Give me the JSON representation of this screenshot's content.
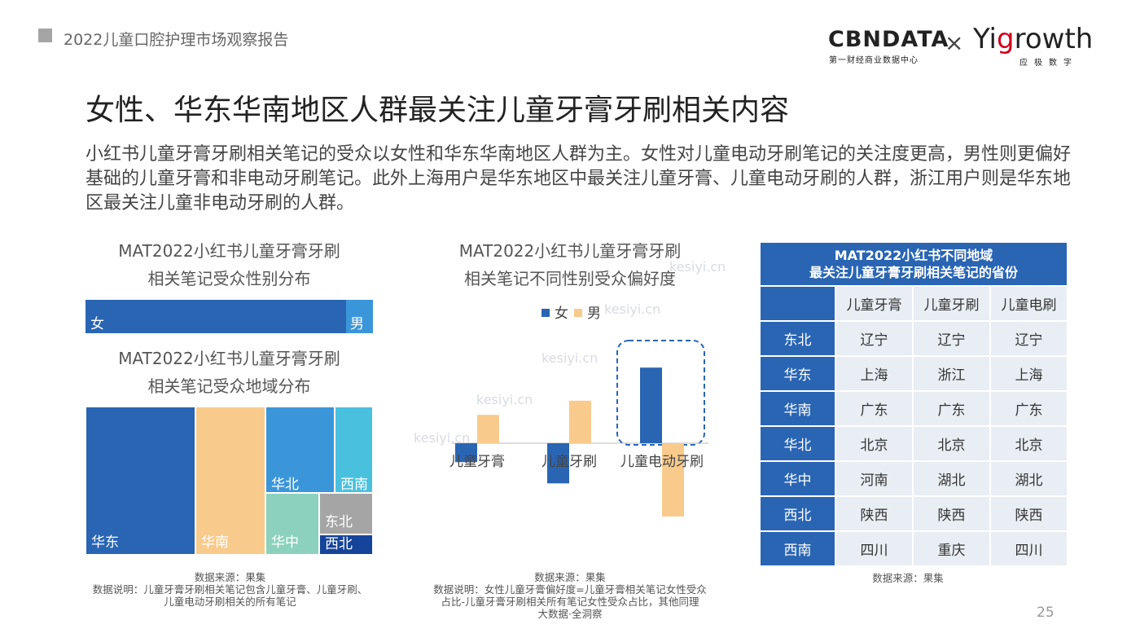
{
  "header": {
    "report_title": "2022儿童口腔护理市场观察报告",
    "logo_cbn": "CBNDATA",
    "logo_cbn_sub": "第一财经商业数据中心",
    "logo_x": "×",
    "logo_yi_a": "Yi",
    "logo_yi_g": "g",
    "logo_yi_b": "rowth",
    "logo_yi_sub": "应极数字"
  },
  "page_title": "女性、华东华南地区人群最关注儿童牙膏牙刷相关内容",
  "description": "小红书儿童牙膏牙刷相关笔记的受众以女性和华东华南地区人群为主。女性对儿童电动牙刷笔记的关注度更高，男性则更偏好基础的儿童牙膏和非电动牙刷笔记。此外上海用户是华东地区中最关注儿童牙膏、儿童电动牙刷的人群，浙江用户则是华东地区最关注儿童非电动牙刷的人群。",
  "watermark": "kesiyi.cn",
  "left": {
    "gender_title_1": "MAT2022小红书儿童牙膏牙刷",
    "gender_title_2": "相关笔记受众性别分布",
    "region_title_1": "MAT2022小红书儿童牙膏牙刷",
    "region_title_2": "相关笔记受众地域分布",
    "note_1": "数据来源：果集",
    "note_2": "数据说明：儿童牙膏牙刷相关笔记包含儿童牙膏、儿童牙刷、",
    "note_3": "儿童电动牙刷相关的所有笔记"
  },
  "middle": {
    "title_1": "MAT2022小红书儿童牙膏牙刷",
    "title_2": "相关笔记不同性别受众偏好度",
    "note_1": "数据来源：果集",
    "note_2": "数据说明：女性儿童牙膏偏好度=儿童牙膏相关笔记女性受众",
    "note_3": "占比-儿童牙膏牙刷相关所有笔记女性受众占比，其他同理",
    "note_4": "大数据·全洞察"
  },
  "right": {
    "table_title_1": "MAT2022小红书不同地域",
    "table_title_2": "最关注儿童牙膏牙刷相关笔记的省份",
    "columns": [
      "儿童牙膏",
      "儿童牙刷",
      "儿童电刷"
    ],
    "rows": [
      {
        "region": "东北",
        "values": [
          "辽宁",
          "辽宁",
          "辽宁"
        ]
      },
      {
        "region": "华东",
        "values": [
          "上海",
          "浙江",
          "上海"
        ]
      },
      {
        "region": "华南",
        "values": [
          "广东",
          "广东",
          "广东"
        ]
      },
      {
        "region": "华北",
        "values": [
          "北京",
          "北京",
          "北京"
        ]
      },
      {
        "region": "华中",
        "values": [
          "河南",
          "湖北",
          "湖北"
        ]
      },
      {
        "region": "西北",
        "values": [
          "陕西",
          "陕西",
          "陕西"
        ]
      },
      {
        "region": "西南",
        "values": [
          "四川",
          "重庆",
          "四川"
        ]
      }
    ],
    "note": "数据来源：果集"
  },
  "page_number": "25",
  "colors": {
    "female": "#2a65b3",
    "male": "#f8cb8c",
    "male_bar": "#3b96d9"
  },
  "chart_data": [
    {
      "type": "bar",
      "stacked": true,
      "orientation": "horizontal",
      "title": "",
      "categories": [
        ""
      ],
      "series": [
        {
          "name": "女",
          "values": [
            0.906
          ]
        },
        {
          "name": "男",
          "values": [
            0.094
          ]
        }
      ]
    },
    {
      "type": "treemap",
      "title": "",
      "items": [
        {
          "label": "华东",
          "value": 0.38,
          "color": "#2a65b3"
        },
        {
          "label": "华南",
          "value": 0.24,
          "color": "#f8cb8c"
        },
        {
          "label": "华北",
          "value": 0.1,
          "color": "#3b96d9"
        },
        {
          "label": "西南",
          "value": 0.07,
          "color": "#4ac0df"
        },
        {
          "label": "华中",
          "value": 0.1,
          "color": "#8cd1bd"
        },
        {
          "label": "东北",
          "value": 0.056,
          "color": "#a5a5a5"
        },
        {
          "label": "西北",
          "value": 0.034,
          "color": "#16449a"
        }
      ]
    },
    {
      "type": "bar",
      "title": "",
      "categories": [
        "儿童牙膏",
        "儿童牙刷",
        "儿童电动牙刷"
      ],
      "series": [
        {
          "name": "女",
          "values": [
            -0.8,
            -1.7,
            3.2
          ]
        },
        {
          "name": "男",
          "values": [
            1.2,
            1.8,
            -3.1
          ]
        }
      ],
      "legend": "top",
      "highlight": "儿童电动牙刷"
    }
  ]
}
